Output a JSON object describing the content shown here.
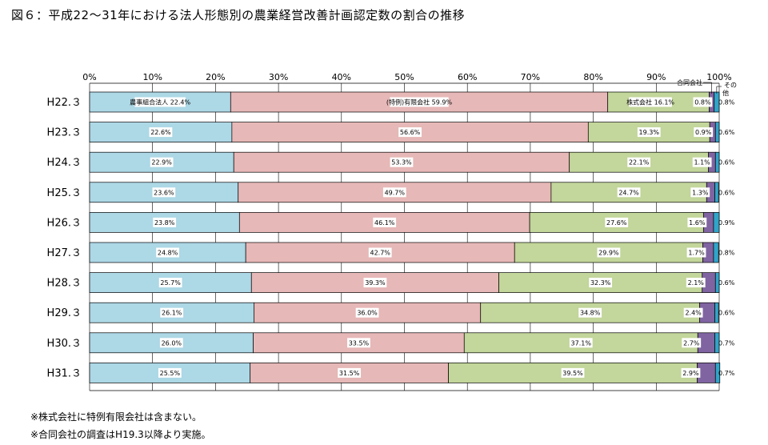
{
  "title": "図６：平成22～31年における法人形態別の農業経営改善計画認定数の割合の推移",
  "notes": [
    "※株式会社に特例有限会社は含まない。",
    "※合同会社の調査はH19.3以降より実施。"
  ],
  "colors": {
    "nouji": "#add8e6",
    "yugen": "#e6b8b7",
    "kabushiki": "#c3d69b",
    "goudou": "#8064a2",
    "sonota": "#31a4c9",
    "border": "#000000"
  },
  "chart_data": {
    "type": "bar",
    "orientation": "horizontal",
    "stacked": true,
    "stacking": "percent",
    "categories": [
      "H22.３",
      "H23.３",
      "H24.３",
      "H25.３",
      "H26.３",
      "H27.３",
      "H28.３",
      "H29.３",
      "H30.３",
      "H31.３"
    ],
    "xlim": [
      0,
      100
    ],
    "xticks": [
      "0%",
      "10%",
      "20%",
      "30%",
      "40%",
      "50%",
      "60%",
      "70%",
      "80%",
      "90%",
      "100%"
    ],
    "grid": true,
    "series": [
      {
        "name": "農事組合法人",
        "color_key": "nouji",
        "values": [
          22.4,
          22.6,
          22.9,
          23.6,
          23.8,
          24.8,
          25.7,
          26.1,
          26.0,
          25.5
        ],
        "labels": [
          "農事組合法人 22.4%",
          "22.6%",
          "22.9%",
          "23.6%",
          "23.8%",
          "24.8%",
          "25.7%",
          "26.1%",
          "26.0%",
          "25.5%"
        ]
      },
      {
        "name": "(特例)有限会社",
        "color_key": "yugen",
        "values": [
          59.9,
          56.6,
          53.3,
          49.7,
          46.1,
          42.7,
          39.3,
          36.0,
          33.5,
          31.5
        ],
        "labels": [
          "(特例)有限会社 59.9%",
          "56.6%",
          "53.3%",
          "49.7%",
          "46.1%",
          "42.7%",
          "39.3%",
          "36.0%",
          "33.5%",
          "31.5%"
        ]
      },
      {
        "name": "株式会社",
        "color_key": "kabushiki",
        "values": [
          16.1,
          19.3,
          22.1,
          24.7,
          27.6,
          29.9,
          32.3,
          34.8,
          37.1,
          39.5
        ],
        "labels": [
          "株式会社 16.1%",
          "19.3%",
          "22.1%",
          "24.7%",
          "27.6%",
          "29.9%",
          "32.3%",
          "34.8%",
          "37.1%",
          "39.5%"
        ]
      },
      {
        "name": "合同会社",
        "color_key": "goudou",
        "values": [
          0.8,
          0.9,
          1.1,
          1.3,
          1.6,
          1.7,
          2.1,
          2.4,
          2.7,
          2.9
        ],
        "labels": [
          "0.8%",
          "0.9%",
          "1.1%",
          "1.3%",
          "1.6%",
          "1.7%",
          "2.1%",
          "2.4%",
          "2.7%",
          "2.9%"
        ]
      },
      {
        "name": "その他",
        "color_key": "sonota",
        "values": [
          0.8,
          0.6,
          0.6,
          0.6,
          0.9,
          0.8,
          0.6,
          0.6,
          0.7,
          0.7
        ],
        "labels": [
          "0.8%",
          "0.6%",
          "0.6%",
          "0.6%",
          "0.9%",
          "0.8%",
          "0.6%",
          "0.6%",
          "0.7%",
          "0.7%"
        ]
      }
    ],
    "callouts": {
      "goudou": "合同会社",
      "sonota_line1": "その",
      "sonota_line2": "他"
    }
  }
}
